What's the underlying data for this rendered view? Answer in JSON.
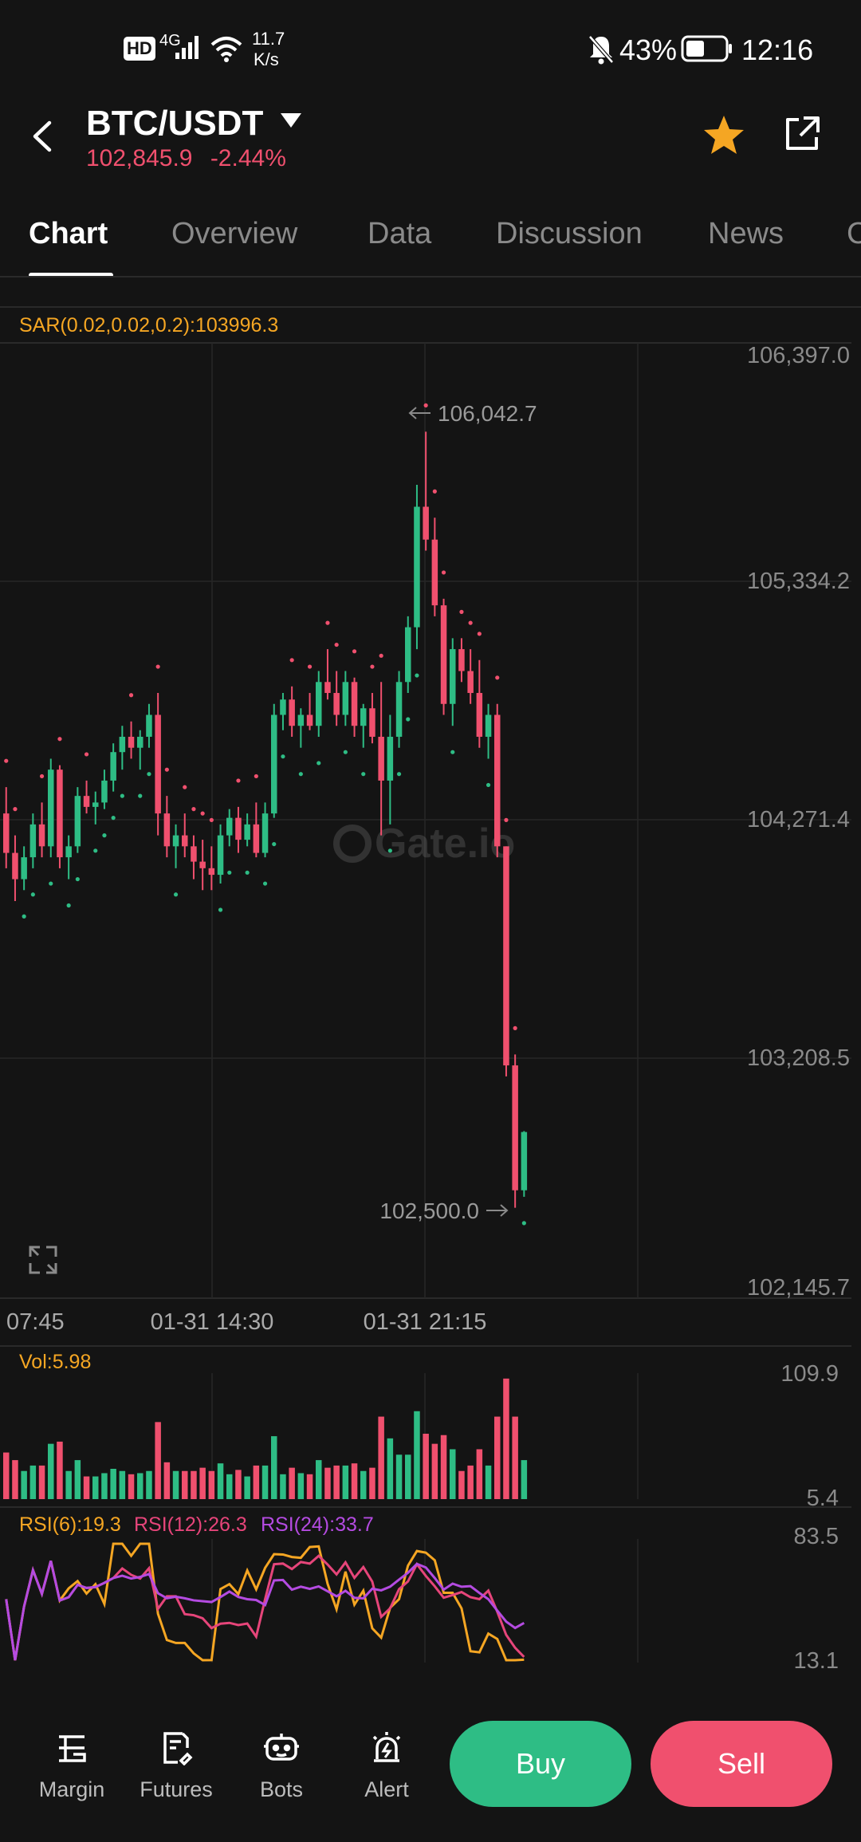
{
  "status_bar": {
    "net_badge": "HD",
    "signal": "4G",
    "speed_value": "11.7",
    "speed_unit": "K/s",
    "battery": "43%",
    "time": "12:16"
  },
  "header": {
    "pair": "BTC/USDT",
    "price": "102,845.9",
    "change": "-2.44%",
    "colors": {
      "up": "#2ebd85",
      "down": "#f0506e",
      "accent": "#f5a623"
    }
  },
  "tabs": [
    {
      "label": "Chart",
      "active": true
    },
    {
      "label": "Overview"
    },
    {
      "label": "Data"
    },
    {
      "label": "Discussion"
    },
    {
      "label": "News"
    },
    {
      "label": "C"
    }
  ],
  "indicator": {
    "sar_label": "SAR(0.02,0.02,0.2):103996.3"
  },
  "price_axis": [
    "106,397.0",
    "105,334.2",
    "104,271.4",
    "103,208.5",
    "102,145.7"
  ],
  "annotations": {
    "high": "106,042.7",
    "low": "102,500.0"
  },
  "time_axis": [
    "07:45",
    "01-31 14:30",
    "01-31 21:15"
  ],
  "watermark": "Gate.io",
  "volume": {
    "label": "Vol:5.98",
    "max": "109.9",
    "min": "5.4"
  },
  "rsi": {
    "rsi6": "RSI(6):19.3",
    "rsi12": "RSI(12):26.3",
    "rsi24": "RSI(24):33.7",
    "max": "83.5",
    "min": "13.1",
    "colors": {
      "rsi6": "#f5a623",
      "rsi12": "#e6457a",
      "rsi24": "#b44be1"
    }
  },
  "bottom_nav": [
    {
      "label": "Margin",
      "icon": "margin-icon"
    },
    {
      "label": "Futures",
      "icon": "futures-icon"
    },
    {
      "label": "Bots",
      "icon": "bots-icon"
    },
    {
      "label": "Alert",
      "icon": "alert-icon"
    }
  ],
  "actions": {
    "buy": "Buy",
    "sell": "Sell"
  },
  "chart_data": {
    "type": "candlestick",
    "ylim": [
      102145.7,
      106397.0
    ],
    "candles": [
      [
        104300,
        104420,
        104050,
        104120
      ],
      [
        104120,
        104200,
        103900,
        104000
      ],
      [
        104000,
        104150,
        103950,
        104100
      ],
      [
        104100,
        104300,
        104050,
        104250
      ],
      [
        104250,
        104350,
        104100,
        104150
      ],
      [
        104150,
        104550,
        104100,
        104500
      ],
      [
        104500,
        104520,
        104050,
        104100
      ],
      [
        104100,
        104200,
        104000,
        104150
      ],
      [
        104150,
        104420,
        104120,
        104380
      ],
      [
        104380,
        104450,
        104300,
        104330
      ],
      [
        104330,
        104400,
        104250,
        104350
      ],
      [
        104350,
        104500,
        104320,
        104450
      ],
      [
        104450,
        104620,
        104400,
        104580
      ],
      [
        104580,
        104700,
        104500,
        104650
      ],
      [
        104650,
        104720,
        104550,
        104600
      ],
      [
        104600,
        104680,
        104500,
        104650
      ],
      [
        104650,
        104800,
        104600,
        104750
      ],
      [
        104750,
        104850,
        104200,
        104300
      ],
      [
        104300,
        104380,
        104100,
        104150
      ],
      [
        104150,
        104250,
        104050,
        104200
      ],
      [
        104200,
        104300,
        104100,
        104150
      ],
      [
        104150,
        104200,
        104000,
        104080
      ],
      [
        104080,
        104180,
        103950,
        104050
      ],
      [
        104050,
        104150,
        103950,
        104020
      ],
      [
        104020,
        104250,
        103980,
        104200
      ],
      [
        104200,
        104320,
        104150,
        104280
      ],
      [
        104280,
        104330,
        104120,
        104180
      ],
      [
        104180,
        104300,
        104150,
        104250
      ],
      [
        104250,
        104350,
        104100,
        104120
      ],
      [
        104120,
        104350,
        104100,
        104300
      ],
      [
        104300,
        104800,
        104280,
        104750
      ],
      [
        104750,
        104850,
        104680,
        104820
      ],
      [
        104820,
        104880,
        104650,
        104700
      ],
      [
        104700,
        104780,
        104600,
        104750
      ],
      [
        104750,
        104850,
        104680,
        104700
      ],
      [
        104700,
        104950,
        104650,
        104900
      ],
      [
        104900,
        105050,
        104820,
        104850
      ],
      [
        104850,
        104950,
        104700,
        104750
      ],
      [
        104750,
        104950,
        104700,
        104900
      ],
      [
        104900,
        104920,
        104650,
        104700
      ],
      [
        104700,
        104800,
        104600,
        104780
      ],
      [
        104780,
        104850,
        104620,
        104650
      ],
      [
        104650,
        104900,
        104200,
        104450
      ],
      [
        104450,
        104750,
        104250,
        104650
      ],
      [
        104650,
        104950,
        104600,
        104900
      ],
      [
        104900,
        105200,
        104850,
        105150
      ],
      [
        105150,
        105800,
        105050,
        105700
      ],
      [
        105700,
        106042.7,
        105500,
        105550
      ],
      [
        105550,
        105650,
        105200,
        105250
      ],
      [
        105250,
        105280,
        104750,
        104800
      ],
      [
        104800,
        105100,
        104700,
        105050
      ],
      [
        105050,
        105100,
        104900,
        104950
      ],
      [
        104950,
        105050,
        104800,
        104850
      ],
      [
        104850,
        105000,
        104600,
        104650
      ],
      [
        104650,
        104800,
        104550,
        104750
      ],
      [
        104750,
        104800,
        104100,
        104150
      ],
      [
        104150,
        104150,
        103100,
        103150
      ],
      [
        103150,
        103200,
        102500,
        102580
      ],
      [
        102580,
        102850,
        102550,
        102845.9
      ]
    ]
  }
}
